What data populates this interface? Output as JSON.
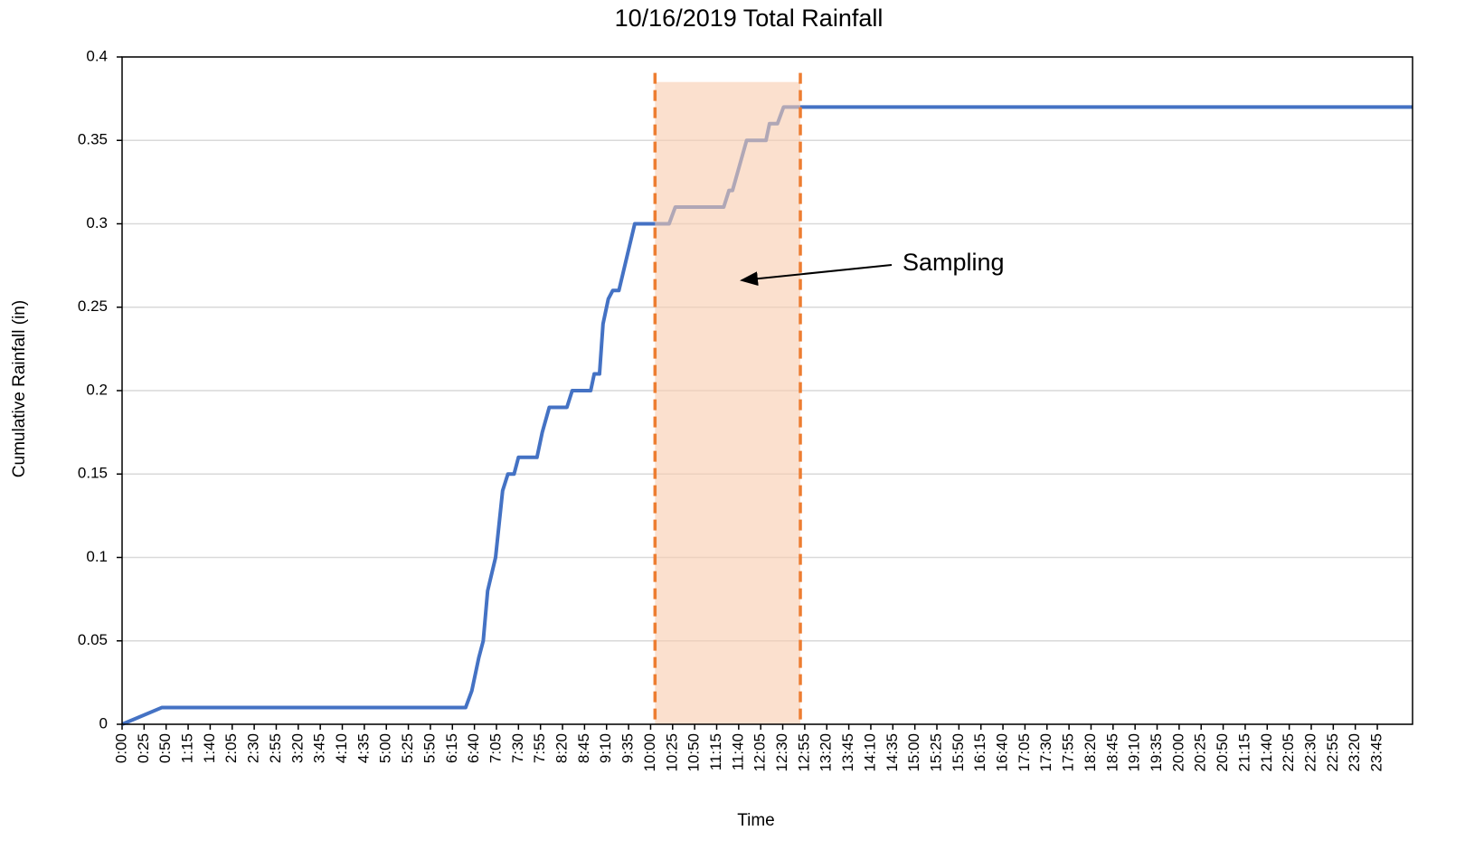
{
  "chart_data": {
    "type": "line",
    "title": "10/16/2019  Total Rainfall",
    "x_label": "Time",
    "y_label": "Cumulative Rainfall (in)",
    "color": "#4472c4",
    "x": [
      0,
      45,
      390,
      397,
      405,
      410,
      415,
      424,
      432,
      438,
      445,
      450,
      471,
      477,
      485,
      505,
      511,
      532,
      536,
      542,
      546,
      552,
      557,
      564,
      582,
      621,
      628,
      683,
      689,
      693,
      709,
      731,
      735,
      744,
      751,
      1465
    ],
    "values": [
      0,
      0.01,
      0.01,
      0.02,
      0.04,
      0.05,
      0.08,
      0.1,
      0.14,
      0.15,
      0.15,
      0.16,
      0.16,
      0.175,
      0.19,
      0.19,
      0.2,
      0.2,
      0.21,
      0.21,
      0.24,
      0.255,
      0.26,
      0.26,
      0.3,
      0.3,
      0.31,
      0.31,
      0.32,
      0.32,
      0.35,
      0.35,
      0.36,
      0.36,
      0.37,
      0.37
    ],
    "sampling_period": {
      "x": [
        605,
        770
      ],
      "y": [
        0,
        0.385
      ],
      "fill": "#f8cbad",
      "line_color": "#ed7d31"
    },
    "annotation": "Sampling",
    "xlim": [
      0,
      1465
    ],
    "ylim": [
      0,
      0.4
    ],
    "yticks": [
      0,
      0.05,
      0.1,
      0.15,
      0.2,
      0.25,
      0.3,
      0.35,
      0.4
    ],
    "grid": true,
    "xticks": [
      {
        "value": 0,
        "label": "0:00"
      },
      {
        "value": 25,
        "label": "0:25"
      },
      {
        "value": 50,
        "label": "0:50"
      },
      {
        "value": 75,
        "label": "1:15"
      },
      {
        "value": 100,
        "label": "1:40"
      },
      {
        "value": 125,
        "label": "2:05"
      },
      {
        "value": 150,
        "label": "2:30"
      },
      {
        "value": 175,
        "label": "2:55"
      },
      {
        "value": 200,
        "label": "3:20"
      },
      {
        "value": 225,
        "label": "3:45"
      },
      {
        "value": 250,
        "label": "4:10"
      },
      {
        "value": 275,
        "label": "4:35"
      },
      {
        "value": 300,
        "label": "5:00"
      },
      {
        "value": 325,
        "label": "5:25"
      },
      {
        "value": 350,
        "label": "5:50"
      },
      {
        "value": 375,
        "label": "6:15"
      },
      {
        "value": 400,
        "label": "6:40"
      },
      {
        "value": 425,
        "label": "7:05"
      },
      {
        "value": 450,
        "label": "7:30"
      },
      {
        "value": 475,
        "label": "7:55"
      },
      {
        "value": 500,
        "label": "8:20"
      },
      {
        "value": 525,
        "label": "8:45"
      },
      {
        "value": 550,
        "label": "9:10"
      },
      {
        "value": 575,
        "label": "9:35"
      },
      {
        "value": 600,
        "label": "10:00"
      },
      {
        "value": 625,
        "label": "10:25"
      },
      {
        "value": 650,
        "label": "10:50"
      },
      {
        "value": 675,
        "label": "11:15"
      },
      {
        "value": 700,
        "label": "11:40"
      },
      {
        "value": 725,
        "label": "12:05"
      },
      {
        "value": 750,
        "label": "12:30"
      },
      {
        "value": 775,
        "label": "12:55"
      },
      {
        "value": 800,
        "label": "13:20"
      },
      {
        "value": 825,
        "label": "13:45"
      },
      {
        "value": 850,
        "label": "14:10"
      },
      {
        "value": 875,
        "label": "14:35"
      },
      {
        "value": 900,
        "label": "15:00"
      },
      {
        "value": 925,
        "label": "15:25"
      },
      {
        "value": 950,
        "label": "15:50"
      },
      {
        "value": 975,
        "label": "16:15"
      },
      {
        "value": 1000,
        "label": "16:40"
      },
      {
        "value": 1025,
        "label": "17:05"
      },
      {
        "value": 1050,
        "label": "17:30"
      },
      {
        "value": 1075,
        "label": "17:55"
      },
      {
        "value": 1100,
        "label": "18:20"
      },
      {
        "value": 1125,
        "label": "18:45"
      },
      {
        "value": 1150,
        "label": "19:10"
      },
      {
        "value": 1175,
        "label": "19:35"
      },
      {
        "value": 1200,
        "label": "20:00"
      },
      {
        "value": 1225,
        "label": "20:25"
      },
      {
        "value": 1250,
        "label": "20:50"
      },
      {
        "value": 1275,
        "label": "21:15"
      },
      {
        "value": 1300,
        "label": "21:40"
      },
      {
        "value": 1325,
        "label": "22:05"
      },
      {
        "value": 1350,
        "label": "22:30"
      },
      {
        "value": 1375,
        "label": "22:55"
      },
      {
        "value": 1400,
        "label": "23:20"
      },
      {
        "value": 1425,
        "label": "23:45"
      }
    ]
  }
}
